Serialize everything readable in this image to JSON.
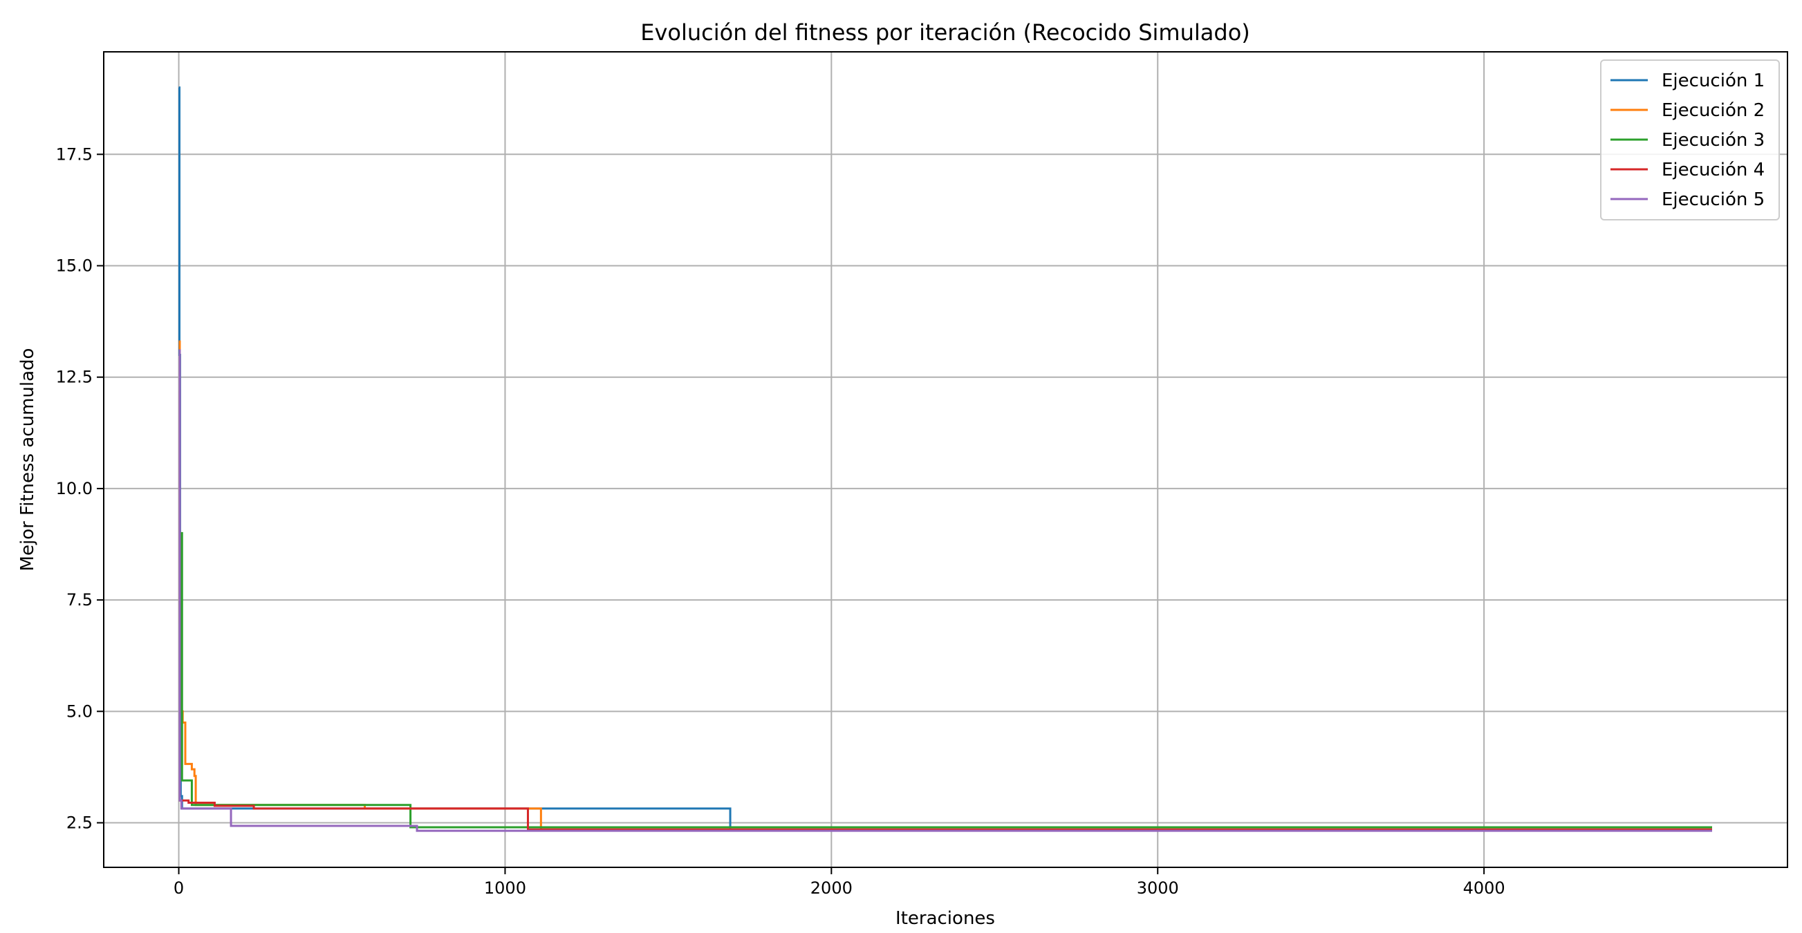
{
  "chart_data": {
    "type": "line",
    "title": "Evolución del fitness por iteración (Recocido Simulado)",
    "xlabel": "Iteraciones",
    "ylabel": "Mejor Fitness acumulado",
    "xlim": [
      -230,
      4930
    ],
    "ylim": [
      1.5,
      19.8
    ],
    "xticks": [
      0,
      1000,
      2000,
      3000,
      4000
    ],
    "yticks": [
      2.5,
      5.0,
      7.5,
      10.0,
      12.5,
      15.0,
      17.5
    ],
    "xtick_labels": [
      "0",
      "1000",
      "2000",
      "3000",
      "4000"
    ],
    "ytick_labels": [
      "2.5",
      "5.0",
      "7.5",
      "10.0",
      "12.5",
      "15.0",
      "17.5"
    ],
    "grid": true,
    "legend_position": "top-right",
    "series": [
      {
        "name": "Ejecución 1",
        "color": "#1f77b4",
        "points": [
          [
            0,
            19.0
          ],
          [
            2,
            19.0
          ],
          [
            2,
            13.0
          ],
          [
            4,
            13.0
          ],
          [
            4,
            6.0
          ],
          [
            6,
            6.0
          ],
          [
            6,
            3.1
          ],
          [
            10,
            3.1
          ],
          [
            10,
            2.82
          ],
          [
            1690,
            2.82
          ],
          [
            1690,
            2.33
          ],
          [
            4699,
            2.33
          ]
        ]
      },
      {
        "name": "Ejecución 2",
        "color": "#ff7f0e",
        "points": [
          [
            0,
            13.3
          ],
          [
            3,
            13.3
          ],
          [
            3,
            7.0
          ],
          [
            6,
            7.0
          ],
          [
            6,
            5.0
          ],
          [
            12,
            5.0
          ],
          [
            12,
            4.75
          ],
          [
            20,
            4.75
          ],
          [
            20,
            3.82
          ],
          [
            40,
            3.82
          ],
          [
            40,
            3.7
          ],
          [
            48,
            3.7
          ],
          [
            48,
            3.55
          ],
          [
            52,
            3.55
          ],
          [
            52,
            2.9
          ],
          [
            570,
            2.9
          ],
          [
            570,
            2.82
          ],
          [
            1110,
            2.82
          ],
          [
            1110,
            2.35
          ],
          [
            4699,
            2.35
          ]
        ]
      },
      {
        "name": "Ejecución 3",
        "color": "#2ca02c",
        "points": [
          [
            0,
            5.0
          ],
          [
            5,
            5.0
          ],
          [
            5,
            9.0
          ],
          [
            10,
            9.0
          ],
          [
            10,
            3.45
          ],
          [
            40,
            3.45
          ],
          [
            40,
            2.9
          ],
          [
            710,
            2.9
          ],
          [
            710,
            2.4
          ],
          [
            4699,
            2.4
          ]
        ]
      },
      {
        "name": "Ejecución 4",
        "color": "#d62728",
        "points": [
          [
            0,
            12.2
          ],
          [
            3,
            12.2
          ],
          [
            3,
            3.0
          ],
          [
            30,
            3.0
          ],
          [
            30,
            2.95
          ],
          [
            110,
            2.95
          ],
          [
            110,
            2.88
          ],
          [
            230,
            2.88
          ],
          [
            230,
            2.82
          ],
          [
            1070,
            2.82
          ],
          [
            1070,
            2.35
          ],
          [
            4699,
            2.35
          ]
        ]
      },
      {
        "name": "Ejecución 5",
        "color": "#9467bd",
        "points": [
          [
            0,
            13.1
          ],
          [
            3,
            13.1
          ],
          [
            3,
            3.0
          ],
          [
            8,
            3.0
          ],
          [
            8,
            2.82
          ],
          [
            160,
            2.82
          ],
          [
            160,
            2.43
          ],
          [
            730,
            2.43
          ],
          [
            730,
            2.32
          ],
          [
            4699,
            2.32
          ]
        ]
      }
    ]
  }
}
